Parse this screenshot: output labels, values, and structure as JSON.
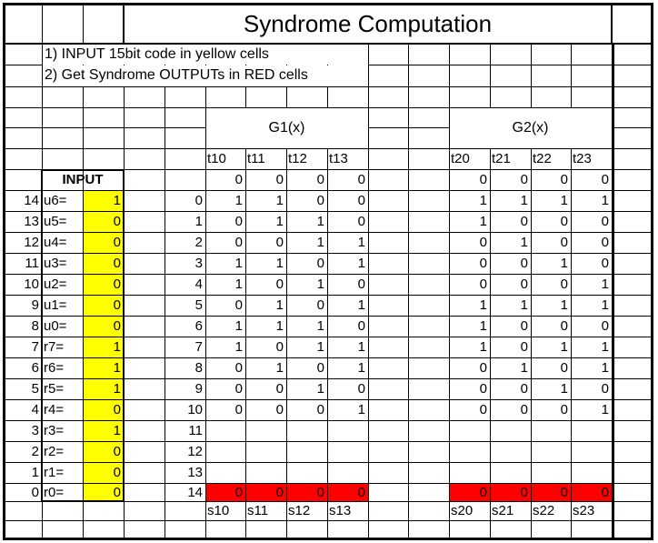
{
  "title": "Syndrome Computation",
  "instructions": [
    "1) INPUT 15bit code in yellow cells",
    "2) Get Syndrome OUTPUTs in RED cells"
  ],
  "colors": {
    "input_fill": "#ffff00",
    "output_fill": "#ff0000",
    "grid": "#000000"
  },
  "input": {
    "header": "INPUT",
    "rows": [
      {
        "idx": "14",
        "label": "u6=",
        "value": "1"
      },
      {
        "idx": "13",
        "label": "u5=",
        "value": "0"
      },
      {
        "idx": "12",
        "label": "u4=",
        "value": "0"
      },
      {
        "idx": "11",
        "label": "u3=",
        "value": "0"
      },
      {
        "idx": "10",
        "label": "u2=",
        "value": "0"
      },
      {
        "idx": "9",
        "label": "u1=",
        "value": "0"
      },
      {
        "idx": "8",
        "label": "u0=",
        "value": "0"
      },
      {
        "idx": "7",
        "label": "r7=",
        "value": "1"
      },
      {
        "idx": "6",
        "label": "r6=",
        "value": "1"
      },
      {
        "idx": "5",
        "label": "r5=",
        "value": "1"
      },
      {
        "idx": "4",
        "label": "r4=",
        "value": "0"
      },
      {
        "idx": "3",
        "label": "r3=",
        "value": "1"
      },
      {
        "idx": "2",
        "label": "r2=",
        "value": "0"
      },
      {
        "idx": "1",
        "label": "r1=",
        "value": "0"
      },
      {
        "idx": "0",
        "label": "r0=",
        "value": "0"
      }
    ]
  },
  "step_numbers": [
    "0",
    "1",
    "2",
    "3",
    "4",
    "5",
    "6",
    "7",
    "8",
    "9",
    "10",
    "11",
    "12",
    "13",
    "14"
  ],
  "g1": {
    "header": "G1(x)",
    "columns": [
      "t10",
      "t11",
      "t12",
      "t13"
    ],
    "initial": [
      "0",
      "0",
      "0",
      "0"
    ],
    "rows": [
      [
        "1",
        "1",
        "0",
        "0"
      ],
      [
        "0",
        "1",
        "1",
        "0"
      ],
      [
        "0",
        "0",
        "1",
        "1"
      ],
      [
        "1",
        "1",
        "0",
        "1"
      ],
      [
        "1",
        "0",
        "1",
        "0"
      ],
      [
        "0",
        "1",
        "0",
        "1"
      ],
      [
        "1",
        "1",
        "1",
        "0"
      ],
      [
        "1",
        "0",
        "1",
        "1"
      ],
      [
        "0",
        "1",
        "0",
        "1"
      ],
      [
        "0",
        "0",
        "1",
        "0"
      ],
      [
        "0",
        "0",
        "0",
        "1"
      ]
    ],
    "outputs": [
      "0",
      "0",
      "0",
      "0"
    ],
    "output_labels": [
      "s10",
      "s11",
      "s12",
      "s13"
    ]
  },
  "g2": {
    "header": "G2(x)",
    "columns": [
      "t20",
      "t21",
      "t22",
      "t23"
    ],
    "initial": [
      "0",
      "0",
      "0",
      "0"
    ],
    "rows": [
      [
        "1",
        "1",
        "1",
        "1"
      ],
      [
        "1",
        "0",
        "0",
        "0"
      ],
      [
        "0",
        "1",
        "0",
        "0"
      ],
      [
        "0",
        "0",
        "1",
        "0"
      ],
      [
        "0",
        "0",
        "0",
        "1"
      ],
      [
        "1",
        "1",
        "1",
        "1"
      ],
      [
        "1",
        "0",
        "0",
        "0"
      ],
      [
        "1",
        "0",
        "1",
        "1"
      ],
      [
        "0",
        "1",
        "0",
        "1"
      ],
      [
        "0",
        "0",
        "1",
        "0"
      ],
      [
        "0",
        "0",
        "0",
        "1"
      ]
    ],
    "outputs": [
      "0",
      "0",
      "0",
      "0"
    ],
    "output_labels": [
      "s20",
      "s21",
      "s22",
      "s23"
    ]
  }
}
